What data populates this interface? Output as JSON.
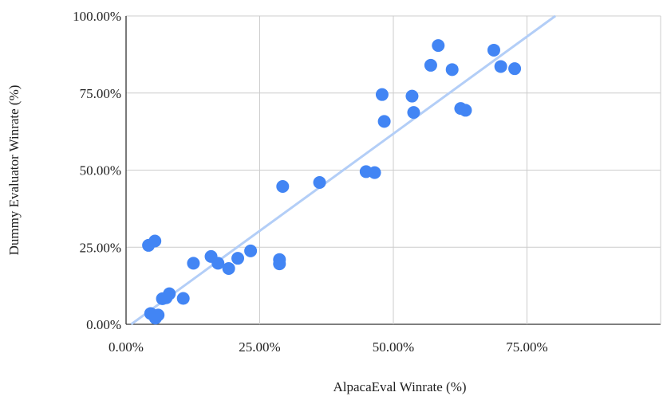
{
  "chart_data": {
    "type": "scatter",
    "title": "",
    "xlabel": "AlpacaEval Winrate (%)",
    "ylabel": "Dummy Evaluator Winrate (%)",
    "xlim": [
      0,
      100
    ],
    "ylim": [
      0,
      100
    ],
    "x_ticks": [
      0,
      25,
      50,
      75
    ],
    "x_tick_labels": [
      "0.00%",
      "25.00%",
      "50.00%",
      "75.00%"
    ],
    "y_ticks": [
      0,
      25,
      50,
      75,
      100
    ],
    "y_tick_labels": [
      "0.00%",
      "25.00%",
      "50.00%",
      "75.00%",
      "100.00%"
    ],
    "grid": true,
    "legend": "none",
    "point_color": "#4285f4",
    "trendline_color": "#b3cef7",
    "trendline": {
      "slope": 1.26,
      "intercept": -1.2
    },
    "series": [
      {
        "points": [
          {
            "x": 4.2,
            "y": 25.6
          },
          {
            "x": 5.4,
            "y": 27.0
          },
          {
            "x": 4.6,
            "y": 3.5
          },
          {
            "x": 5.5,
            "y": 2.0
          },
          {
            "x": 6.0,
            "y": 3.0
          },
          {
            "x": 6.8,
            "y": 8.3
          },
          {
            "x": 7.5,
            "y": 8.6
          },
          {
            "x": 8.1,
            "y": 9.9
          },
          {
            "x": 10.7,
            "y": 8.4
          },
          {
            "x": 12.6,
            "y": 19.8
          },
          {
            "x": 15.9,
            "y": 22.0
          },
          {
            "x": 17.2,
            "y": 19.8
          },
          {
            "x": 19.2,
            "y": 18.1
          },
          {
            "x": 20.9,
            "y": 21.4
          },
          {
            "x": 23.3,
            "y": 23.8
          },
          {
            "x": 28.7,
            "y": 21.0
          },
          {
            "x": 28.7,
            "y": 19.6
          },
          {
            "x": 29.3,
            "y": 44.7
          },
          {
            "x": 36.2,
            "y": 46.0
          },
          {
            "x": 44.9,
            "y": 49.5
          },
          {
            "x": 46.5,
            "y": 49.2
          },
          {
            "x": 47.9,
            "y": 74.5
          },
          {
            "x": 48.3,
            "y": 65.8
          },
          {
            "x": 53.5,
            "y": 74.0
          },
          {
            "x": 53.8,
            "y": 68.7
          },
          {
            "x": 57.0,
            "y": 84.0
          },
          {
            "x": 58.4,
            "y": 90.4
          },
          {
            "x": 61.0,
            "y": 82.6
          },
          {
            "x": 62.6,
            "y": 70.0
          },
          {
            "x": 63.5,
            "y": 69.4
          },
          {
            "x": 68.8,
            "y": 88.9
          },
          {
            "x": 70.1,
            "y": 83.6
          },
          {
            "x": 72.7,
            "y": 82.9
          }
        ]
      }
    ]
  }
}
